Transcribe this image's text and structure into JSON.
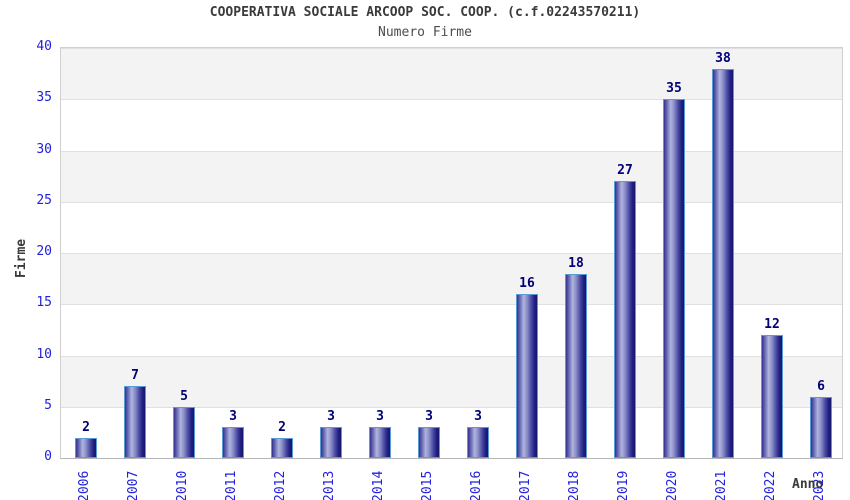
{
  "title": "COOPERATIVA SOCIALE ARCOOP SOC. COOP. (c.f.02243570211)",
  "subtitle": "Numero Firme",
  "chart_data": {
    "type": "bar",
    "title": "COOPERATIVA SOCIALE ARCOOP SOC. COOP. (c.f.02243570211)",
    "subtitle": "Numero Firme",
    "categories": [
      "2006",
      "2007",
      "2010",
      "2011",
      "2012",
      "2013",
      "2014",
      "2015",
      "2016",
      "2017",
      "2018",
      "2019",
      "2020",
      "2021",
      "2022",
      "2023"
    ],
    "values": [
      2,
      7,
      5,
      3,
      2,
      3,
      3,
      3,
      3,
      16,
      18,
      27,
      35,
      38,
      12,
      6
    ],
    "xlabel": "Anno",
    "ylabel": "Firme",
    "ylim": [
      0,
      40
    ],
    "yticks": [
      0,
      5,
      10,
      15,
      20,
      25,
      30,
      35,
      40
    ],
    "grid": "horizontal-bands-alternating",
    "legend_visible": false,
    "colors": {
      "bar_gradient_dark": "#16166e",
      "bar_gradient_mid": "#4d4da5",
      "bar_gradient_light": "#b0b4dd",
      "bar_border": "#5b9bd5",
      "axis_tick_text": "#2222dd",
      "value_label_text": "#000077",
      "band_fill": "#f3f3f3",
      "gridline": "#e0e0e0",
      "title_text": "#3a3a3a"
    }
  }
}
